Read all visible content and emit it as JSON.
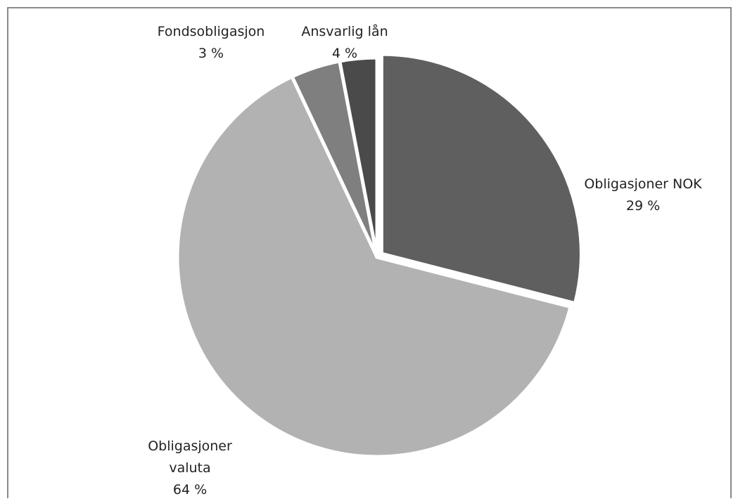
{
  "chart_data": {
    "type": "pie",
    "categories": [
      "Obligasjoner NOK",
      "Obligasjoner valuta",
      "Ansvarlig lån",
      "Fondsobligasjon"
    ],
    "values": [
      29,
      64,
      4,
      3
    ],
    "value_labels": [
      "29 %",
      "64 %",
      "4 %",
      "3 %"
    ],
    "colors": [
      "#5f5f5f",
      "#b2b2b2",
      "#7f7f7f",
      "#4a4a4a"
    ]
  }
}
